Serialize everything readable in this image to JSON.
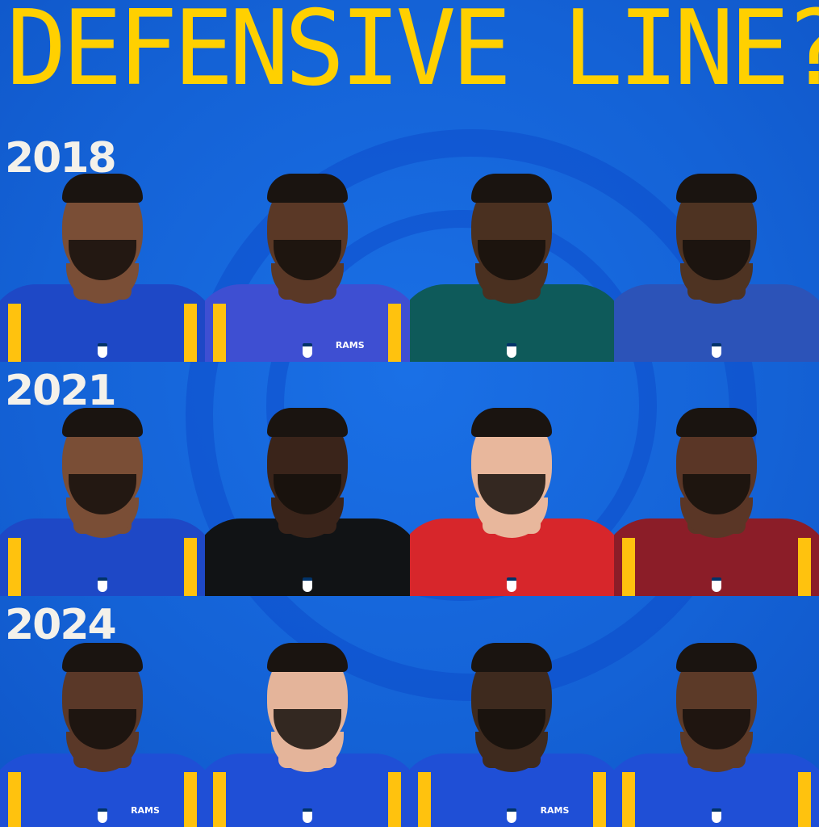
{
  "title": "DEFENSIVE LINE?",
  "colors": {
    "background": "#1565d8",
    "title": "#ffd000",
    "year_text": "#f4f1ea"
  },
  "rows": [
    {
      "year": "2018",
      "players": [
        {
          "jersey": "#1e48c6",
          "skin": "#7a4e36",
          "stripe": true,
          "wordmark": ""
        },
        {
          "jersey": "#3e4fd2",
          "skin": "#5a3826",
          "stripe": true,
          "wordmark": "RAMS"
        },
        {
          "jersey": "#0e5a5a",
          "skin": "#4a3020",
          "stripe": false,
          "wordmark": ""
        },
        {
          "jersey": "#2c53b8",
          "skin": "#4e3322",
          "stripe": false,
          "wordmark": ""
        }
      ]
    },
    {
      "year": "2021",
      "players": [
        {
          "jersey": "#1e48c6",
          "skin": "#7a4e36",
          "stripe": true,
          "wordmark": ""
        },
        {
          "jersey": "#111315",
          "skin": "#3a241a",
          "stripe": false,
          "wordmark": ""
        },
        {
          "jersey": "#d7262b",
          "skin": "#e8b79c",
          "stripe": false,
          "wordmark": ""
        },
        {
          "jersey": "#8b1d28",
          "skin": "#5a3626",
          "stripe": true,
          "wordmark": ""
        }
      ]
    },
    {
      "year": "2024",
      "players": [
        {
          "jersey": "#1f4fd6",
          "skin": "#5a3828",
          "stripe": true,
          "wordmark": "RAMS"
        },
        {
          "jersey": "#1f4fd6",
          "skin": "#e4b49a",
          "stripe": true,
          "wordmark": ""
        },
        {
          "jersey": "#1f4fd6",
          "skin": "#3e2a1e",
          "stripe": true,
          "wordmark": "RAMS"
        },
        {
          "jersey": "#1f4fd6",
          "skin": "#5c3a28",
          "stripe": true,
          "wordmark": ""
        }
      ]
    }
  ]
}
